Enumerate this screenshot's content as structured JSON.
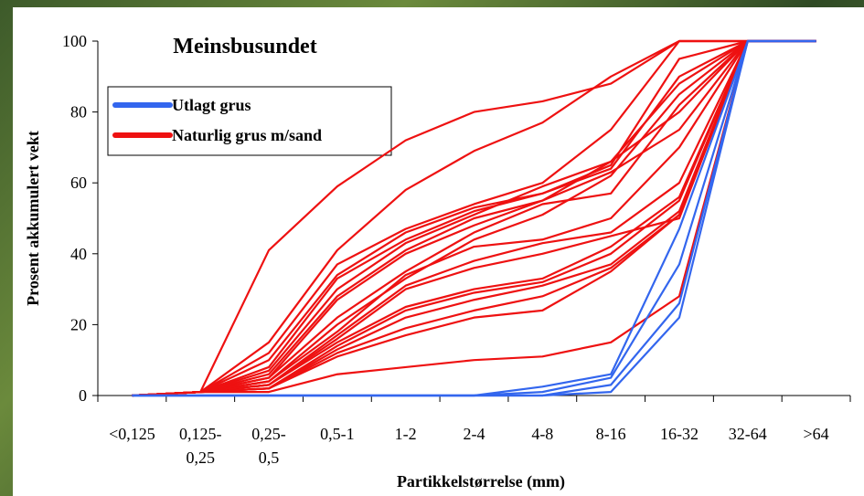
{
  "chart_data": {
    "type": "line",
    "title": "Meinsbusundet",
    "x_label": "Partikkelstørrelse (mm)",
    "y_label": "Prosent akkumulert vekt",
    "categories": [
      "<0,125",
      "0,125-\n0,25",
      "0,25-\n0,5",
      "0,5-1",
      "1-2",
      "2-4",
      "4-8",
      "8-16",
      "16-32",
      "32-64",
      ">64"
    ],
    "ylim": [
      0,
      100
    ],
    "yticks": [
      0,
      20,
      40,
      60,
      80,
      100
    ],
    "grid": false,
    "legend": "upper left",
    "series": [
      {
        "name": "Utlagt grus",
        "color": "#3366ee",
        "values": [
          [
            0,
            0,
            0,
            0,
            0,
            0,
            0,
            1,
            22,
            100,
            100
          ],
          [
            0,
            0,
            0,
            0,
            0,
            0,
            0,
            3,
            26,
            100,
            100
          ],
          [
            0,
            0,
            0,
            0,
            0,
            0,
            1,
            5,
            37,
            100,
            100
          ],
          [
            0,
            0,
            0,
            0,
            0,
            0,
            2.5,
            6,
            47,
            100,
            100
          ]
        ]
      },
      {
        "name": "Naturlig grus m/sand",
        "color": "#ee1111",
        "values": [
          [
            0,
            1,
            41,
            59,
            72,
            80,
            83,
            88,
            100,
            100,
            100
          ],
          [
            0,
            1,
            15,
            41,
            58,
            69,
            77,
            90,
            100,
            100,
            100
          ],
          [
            0,
            1,
            12,
            37,
            47,
            54,
            60,
            75,
            100,
            100,
            100
          ],
          [
            0,
            1,
            10,
            34,
            46,
            53,
            57,
            65,
            95,
            100,
            100
          ],
          [
            0,
            1,
            8,
            33,
            44,
            52,
            57,
            64,
            90,
            100,
            100
          ],
          [
            0,
            1,
            7,
            30,
            43,
            51,
            59,
            66,
            88,
            100,
            100
          ],
          [
            0,
            1,
            6,
            28,
            41,
            50,
            55,
            66,
            80,
            100,
            100
          ],
          [
            0,
            1,
            5,
            27,
            40,
            48,
            55,
            63,
            75,
            100,
            100
          ],
          [
            0,
            1,
            5,
            22,
            35,
            46,
            54,
            57,
            82,
            100,
            100
          ],
          [
            0,
            1,
            4,
            20,
            33,
            44,
            51,
            62,
            85,
            100,
            100
          ],
          [
            0,
            1,
            4,
            18,
            34,
            42,
            44,
            50,
            70,
            100,
            100
          ],
          [
            0,
            1,
            3,
            17,
            31,
            38,
            43,
            46,
            60,
            100,
            100
          ],
          [
            0,
            1,
            3,
            16,
            30,
            36,
            40,
            45,
            50,
            100,
            100
          ],
          [
            0,
            1,
            3,
            15,
            25,
            30,
            33,
            42,
            56,
            100,
            100
          ],
          [
            0,
            1,
            2,
            14,
            24,
            29,
            32,
            40,
            55,
            100,
            100
          ],
          [
            0,
            1,
            2,
            13,
            22,
            27,
            31,
            37,
            52,
            100,
            100
          ],
          [
            0,
            1,
            2,
            12,
            19,
            24,
            28,
            36,
            51,
            100,
            100
          ],
          [
            0,
            1,
            2,
            11,
            17,
            22,
            24,
            35,
            51,
            100,
            100
          ],
          [
            0,
            1,
            1,
            6,
            8,
            10,
            11,
            15,
            28,
            100,
            100
          ]
        ]
      }
    ]
  }
}
